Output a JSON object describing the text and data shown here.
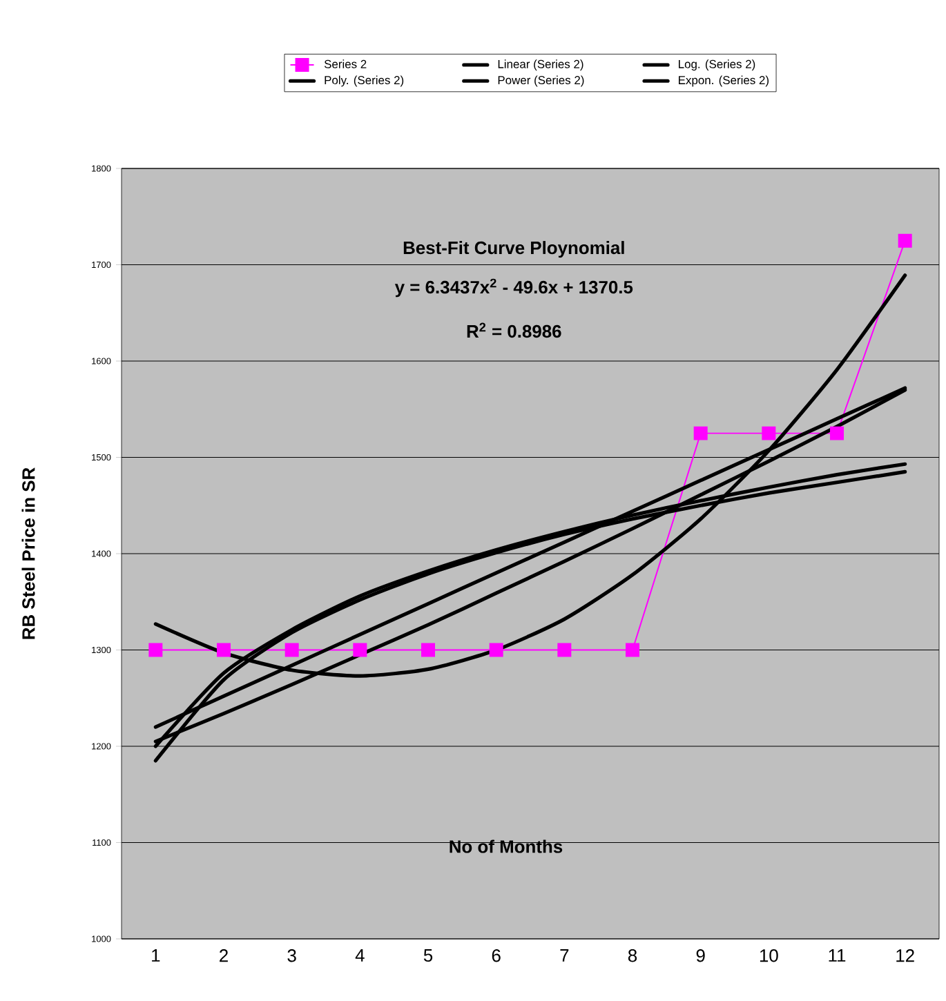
{
  "chart_data": {
    "type": "line",
    "ylabel": "RB Steel Price in SR",
    "xlabel": "No of Months",
    "annotations": [
      "Best-Fit Curve Ploynomial",
      "y = 6.3437x$^{2}$ - 49.6x + 1370.5",
      "R$^{2}$ = 0.8986"
    ],
    "categories": [
      "1",
      "2",
      "3",
      "4",
      "5",
      "6",
      "7",
      "8",
      "9",
      "10",
      "11",
      "12"
    ],
    "series": [
      {
        "name": "Series 2",
        "color": "#ff00ff",
        "marker": "square",
        "values": [
          1300,
          1300,
          1300,
          1300,
          1300,
          1300,
          1300,
          1300,
          1525,
          1525,
          1525,
          1725
        ]
      },
      {
        "name": "Linear (Series 2)",
        "color": "#000000",
        "values": [
          1220,
          1252,
          1284,
          1316,
          1348,
          1380,
          1412,
          1444,
          1476,
          1508,
          1540,
          1572
        ]
      },
      {
        "name": "Log. (Series 2)",
        "color": "#000000",
        "values": [
          1185,
          1269,
          1318,
          1352,
          1379,
          1401,
          1420,
          1436,
          1450,
          1463,
          1474,
          1485
        ]
      },
      {
        "name": "Poly. (Series 2)",
        "color": "#000000",
        "values": [
          1327,
          1297,
          1279,
          1273,
          1280,
          1300,
          1332,
          1378,
          1436,
          1507,
          1591,
          1689
        ]
      },
      {
        "name": "Power (Series 2)",
        "color": "#000000",
        "values": [
          1200,
          1276,
          1321,
          1356,
          1382,
          1404,
          1423,
          1440,
          1455,
          1469,
          1482,
          1493
        ]
      },
      {
        "name": "Expon. (Series 2)",
        "color": "#000000",
        "values": [
          1205,
          1234,
          1264,
          1295,
          1326,
          1359,
          1392,
          1426,
          1461,
          1496,
          1532,
          1570
        ]
      }
    ],
    "ylim": [
      1000,
      1800
    ],
    "yticks": [
      1000,
      1100,
      1200,
      1300,
      1400,
      1500,
      1600,
      1700,
      1800
    ],
    "grid": "y",
    "legend": "top"
  }
}
